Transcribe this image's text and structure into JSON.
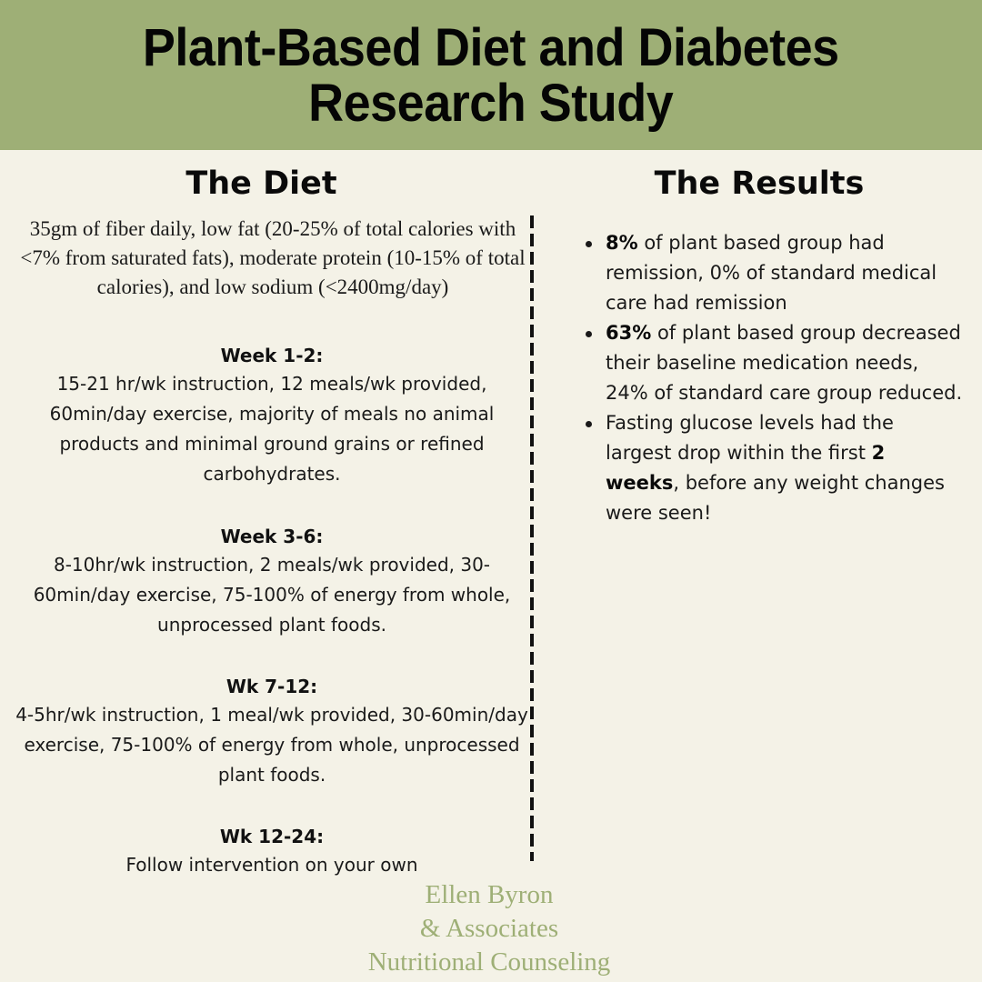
{
  "header": {
    "title_line1": "Plant-Based Diet and Diabetes",
    "title_line2": "Research Study",
    "background_color": "#9eaf76"
  },
  "diet": {
    "heading": "The Diet",
    "summary": "35gm of fiber daily, low fat (20-25% of total calories with <7% from saturated fats), moderate protein (10-15% of total calories), and low sodium (<2400mg/day)",
    "phases": [
      {
        "title": "Week 1-2:",
        "text": "15-21 hr/wk instruction, 12 meals/wk provided, 60min/day exercise, majority of meals no animal products and minimal ground grains or refined carbohydrates."
      },
      {
        "title": "Week 3-6:",
        "text": "8-10hr/wk instruction, 2 meals/wk provided, 30-60min/day exercise, 75-100% of energy from whole, unprocessed plant foods."
      },
      {
        "title": "Wk 7-12:",
        "text": "4-5hr/wk instruction, 1 meal/wk provided, 30-60min/day exercise, 75-100% of energy from whole, unprocessed plant foods."
      },
      {
        "title": "Wk 12-24:",
        "text": "Follow intervention on your own"
      }
    ]
  },
  "results": {
    "heading": "The Results",
    "items": [
      {
        "bold": "8%",
        "text": " of plant based group had remission, 0% of standard medical care had remission"
      },
      {
        "bold": "63%",
        "text": " of plant based group decreased their baseline medication needs, 24% of standard care group reduced."
      },
      {
        "pre": "Fasting glucose levels had the largest drop within the first ",
        "bold": "2 weeks",
        "text": ", before any weight changes were seen!"
      }
    ]
  },
  "brand": {
    "line1": "Ellen Byron",
    "line2": "& Associates",
    "line3": "Nutritional Counseling",
    "color": "#9eaf76"
  }
}
